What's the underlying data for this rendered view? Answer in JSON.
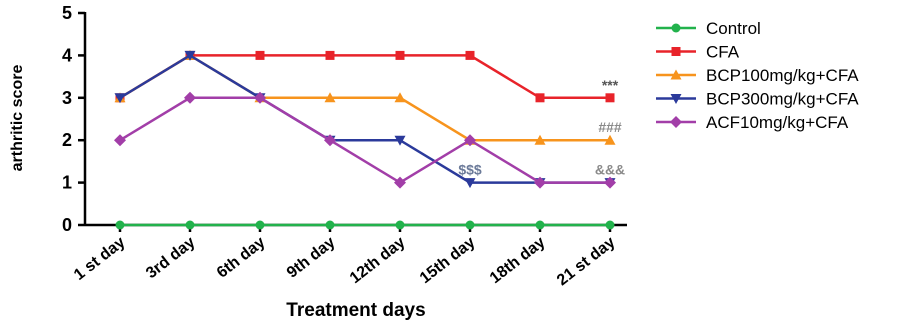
{
  "chart_data": {
    "type": "line",
    "xlabel": "Treatment days",
    "ylabel": "arthritic score",
    "ylim": [
      0,
      5
    ],
    "yticks": [
      0,
      1,
      2,
      3,
      4,
      5
    ],
    "categories": [
      "1 st day",
      "3rd day",
      "6th day",
      "9th day",
      "12th day",
      "15th day",
      "18th day",
      "21 st day"
    ],
    "legend_position": "right",
    "grid": false,
    "series": [
      {
        "name": "Control",
        "color": "#22b24c",
        "marker": "circle",
        "values": [
          0,
          0,
          0,
          0,
          0,
          0,
          0,
          0
        ]
      },
      {
        "name": "CFA",
        "color": "#e8232a",
        "marker": "square",
        "values": [
          3,
          4,
          4,
          4,
          4,
          4,
          3,
          3
        ]
      },
      {
        "name": "BCP100mg/kg+CFA",
        "color": "#f7941d",
        "marker": "triangle-up",
        "values": [
          3,
          4,
          3,
          3,
          3,
          2,
          2,
          2
        ]
      },
      {
        "name": "BCP300mg/kg+CFA",
        "color": "#2b3a9b",
        "marker": "triangle-down",
        "values": [
          3,
          4,
          3,
          2,
          2,
          1,
          1,
          1
        ]
      },
      {
        "name": "ACF10mg/kg+CFA",
        "color": "#a23ea8",
        "marker": "diamond",
        "values": [
          2,
          3,
          3,
          2,
          1,
          2,
          1,
          1
        ]
      }
    ],
    "annotations": [
      {
        "text": "***",
        "x": "21 st day",
        "y": 3,
        "color": "#555555"
      },
      {
        "text": "###",
        "x": "21 st day",
        "y": 2,
        "color": "#8a8a8a"
      },
      {
        "text": "$$$",
        "x": "15th day",
        "y": 1,
        "color": "#6b7a99"
      },
      {
        "text": "&&&",
        "x": "21 st day",
        "y": 1,
        "color": "#8a8a8a"
      }
    ]
  }
}
